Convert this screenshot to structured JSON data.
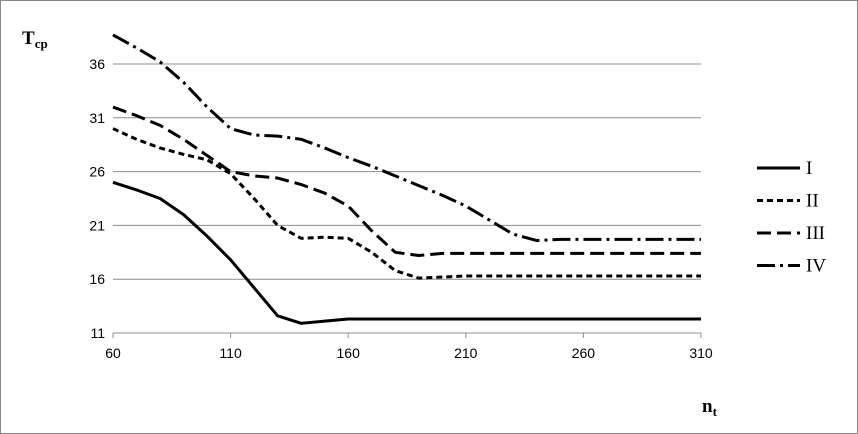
{
  "chart_data": {
    "type": "line",
    "ylabel": "T",
    "ylabel_sub": "cp",
    "xlabel": "n",
    "xlabel_sub": "t",
    "xlim": [
      60,
      310
    ],
    "xticks": [
      60,
      110,
      160,
      210,
      260,
      310
    ],
    "ylim": [
      11,
      39
    ],
    "yticks": [
      11,
      16,
      21,
      26,
      31,
      36
    ],
    "grid": true,
    "legend": "right",
    "x": [
      60,
      70,
      80,
      90,
      100,
      110,
      120,
      130,
      140,
      150,
      160,
      170,
      180,
      190,
      200,
      210,
      220,
      230,
      240,
      250,
      260,
      270,
      280,
      290,
      300,
      310
    ],
    "series": [
      {
        "name": "I",
        "color": "#000000",
        "dash": "none",
        "values": [
          25,
          24.3,
          23.5,
          22,
          20,
          17.8,
          15.2,
          12.6,
          11.9,
          12.1,
          12.3,
          12.3,
          12.3,
          12.3,
          12.3,
          12.3,
          12.3,
          12.3,
          12.3,
          12.3,
          12.3,
          12.3,
          12.3,
          12.3,
          12.3,
          12.3
        ]
      },
      {
        "name": "II",
        "color": "#000000",
        "dash": "6 4",
        "values": [
          30,
          29,
          28.2,
          27.6,
          27.1,
          25.8,
          23.5,
          21,
          19.8,
          19.9,
          19.8,
          18.5,
          16.8,
          16.1,
          16.2,
          16.3,
          16.3,
          16.3,
          16.3,
          16.3,
          16.3,
          16.3,
          16.3,
          16.3,
          16.3,
          16.3
        ]
      },
      {
        "name": "III",
        "color": "#000000",
        "dash": "14 6",
        "values": [
          32,
          31.2,
          30.3,
          29,
          27.5,
          26,
          25.6,
          25.4,
          24.8,
          24,
          22.8,
          20.5,
          18.5,
          18.2,
          18.4,
          18.4,
          18.4,
          18.4,
          18.4,
          18.4,
          18.4,
          18.4,
          18.4,
          18.4,
          18.4,
          18.4
        ]
      },
      {
        "name": "IV",
        "color": "#000000",
        "dash": "18 5 3 5",
        "values": [
          38.7,
          37.5,
          36.2,
          34.3,
          32,
          30,
          29.4,
          29.3,
          29,
          28.2,
          27.3,
          26.5,
          25.6,
          24.7,
          23.8,
          22.8,
          21.5,
          20.2,
          19.6,
          19.7,
          19.7,
          19.7,
          19.7,
          19.7,
          19.7,
          19.7
        ]
      }
    ]
  }
}
